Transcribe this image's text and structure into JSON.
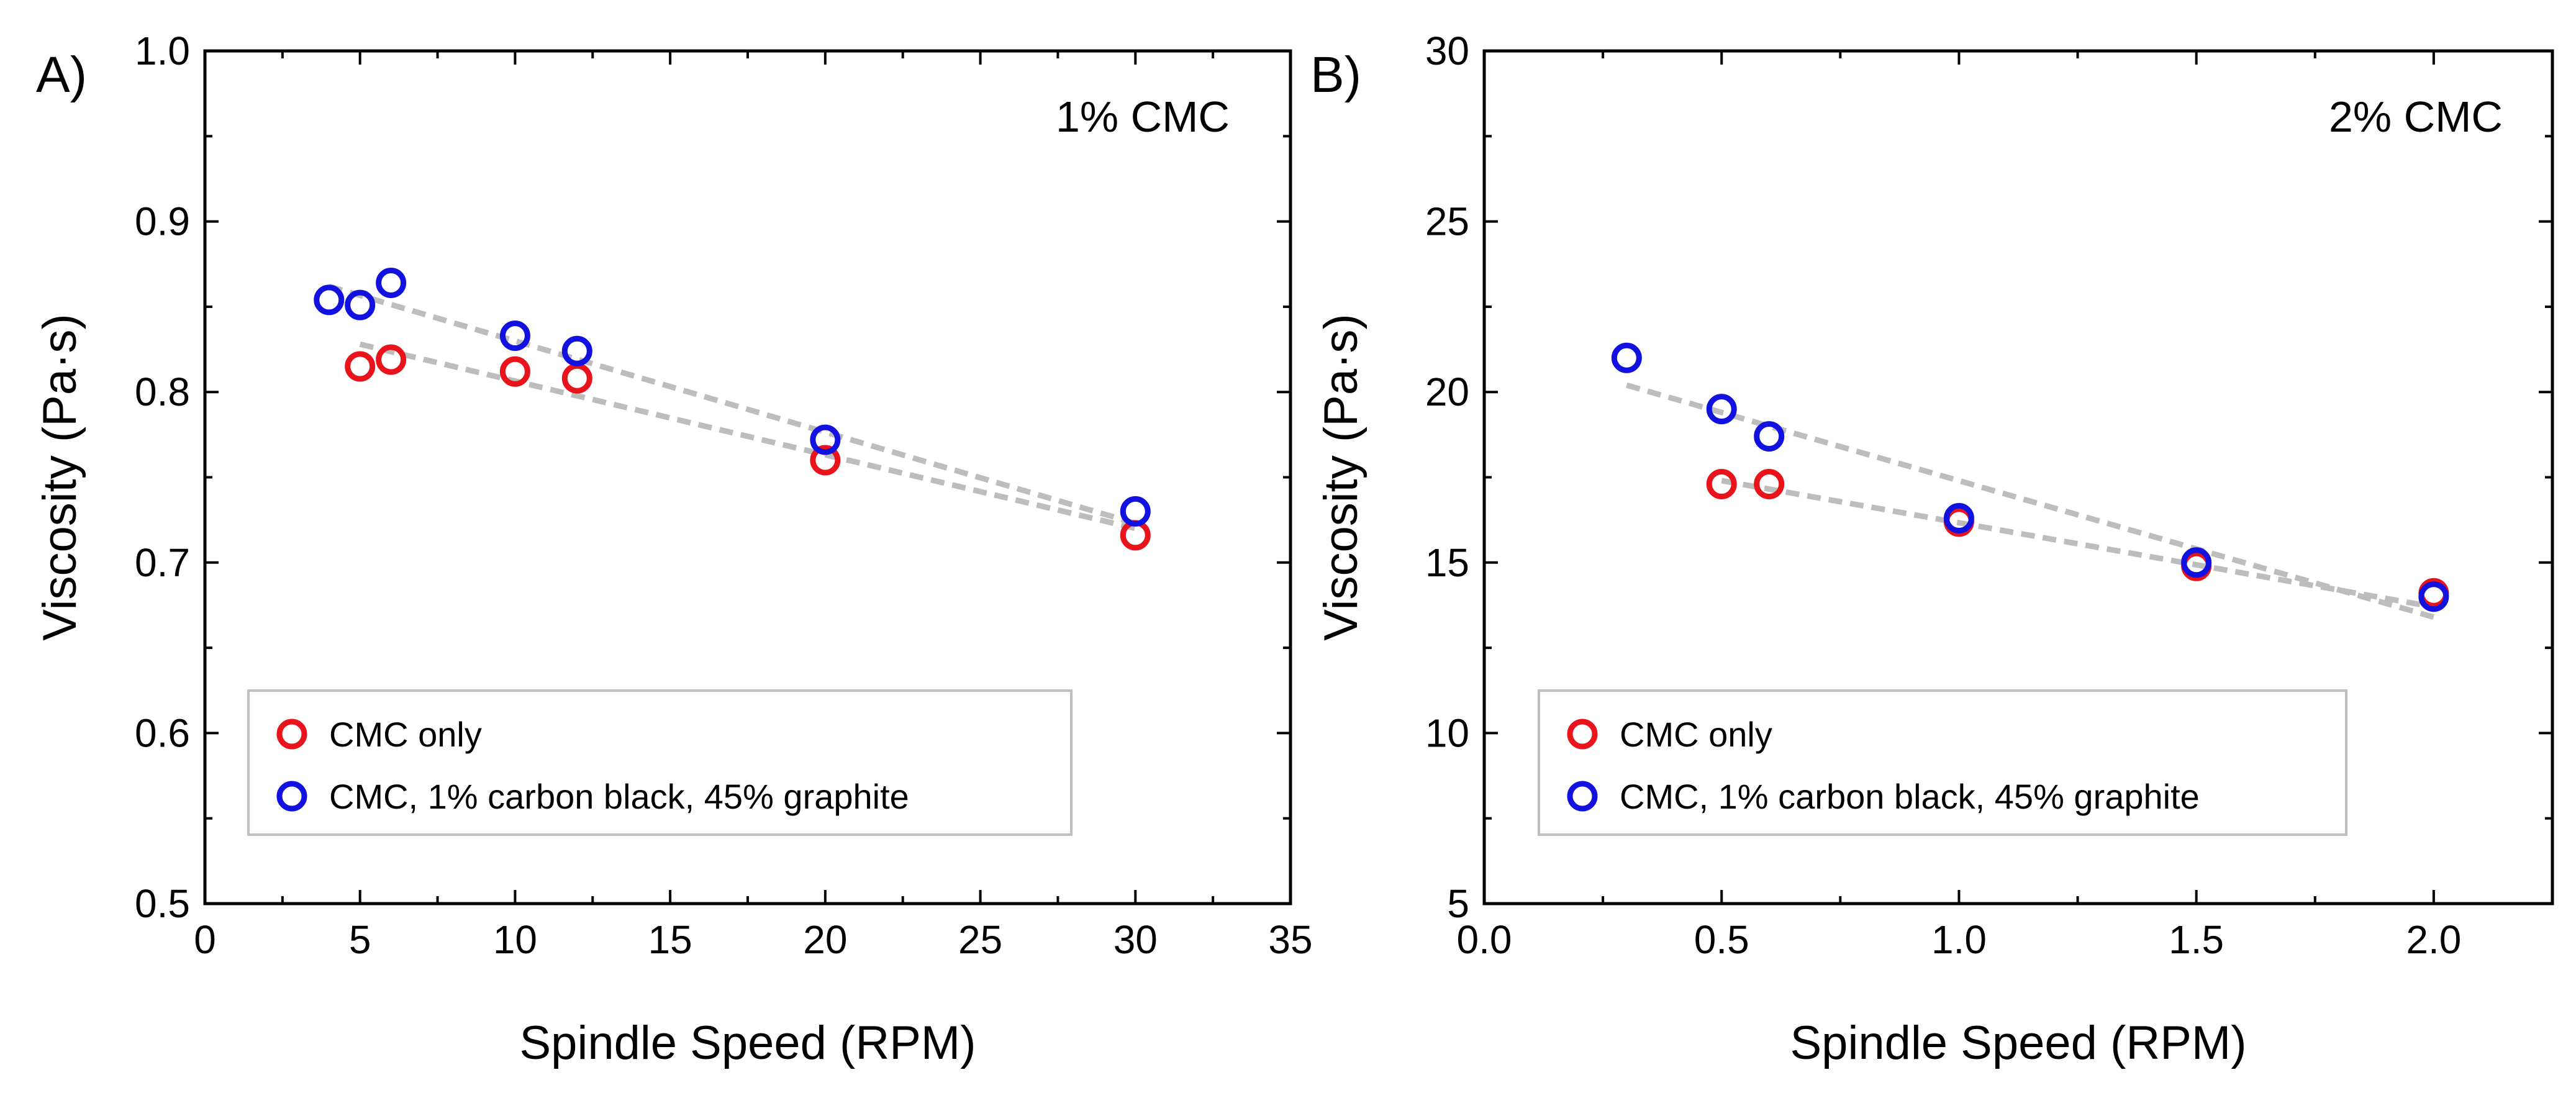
{
  "chart_data": [
    {
      "panel_label": "A)",
      "type": "scatter",
      "annotation": "1% CMC",
      "xlabel": "Spindle Speed (RPM)",
      "ylabel": "Viscosity (Pa·s)",
      "xlim": [
        0,
        35
      ],
      "ylim": [
        0.5,
        1.0
      ],
      "xticks": [
        0,
        5,
        10,
        15,
        20,
        25,
        30,
        35
      ],
      "xtick_labels": [
        "0",
        "5",
        "10",
        "15",
        "20",
        "25",
        "30",
        "35"
      ],
      "yticks": [
        0.5,
        0.6,
        0.7,
        0.8,
        0.9,
        1.0
      ],
      "ytick_labels": [
        "0.5",
        "0.6",
        "0.7",
        "0.8",
        "0.9",
        "1.0"
      ],
      "legend_position": "bottom-left",
      "series": [
        {
          "name": "CMC only",
          "color": "#e8131b",
          "x": [
            5,
            6,
            10,
            12,
            20,
            30
          ],
          "y": [
            0.815,
            0.819,
            0.812,
            0.808,
            0.76,
            0.716
          ],
          "trendline": {
            "x": [
              5,
              30
            ],
            "y": [
              0.828,
              0.72
            ]
          }
        },
        {
          "name": "CMC, 1% carbon black, 45% graphite",
          "color": "#1111e0",
          "x": [
            4,
            5,
            6,
            10,
            12,
            20,
            30
          ],
          "y": [
            0.854,
            0.851,
            0.864,
            0.833,
            0.824,
            0.772,
            0.73
          ],
          "trendline": {
            "x": [
              4,
              30
            ],
            "y": [
              0.862,
              0.723
            ]
          }
        }
      ]
    },
    {
      "panel_label": "B)",
      "type": "scatter",
      "annotation": "2% CMC",
      "xlabel": "Spindle Speed (RPM)",
      "ylabel": "Viscosity (Pa·s)",
      "xlim": [
        0.0,
        2.25
      ],
      "ylim": [
        5,
        30
      ],
      "xticks": [
        0.0,
        0.5,
        1.0,
        1.5,
        2.0
      ],
      "xtick_labels": [
        "0.0",
        "0.5",
        "1.0",
        "1.5",
        "2.0"
      ],
      "yticks": [
        5,
        10,
        15,
        20,
        25,
        30
      ],
      "ytick_labels": [
        "5",
        "10",
        "15",
        "20",
        "25",
        "30"
      ],
      "legend_position": "bottom-left",
      "series": [
        {
          "name": "CMC only",
          "color": "#e8131b",
          "x": [
            0.5,
            0.6,
            1.0,
            1.5,
            2.0
          ],
          "y": [
            17.3,
            17.3,
            16.2,
            14.9,
            14.1
          ],
          "trendline": {
            "x": [
              0.5,
              2.0
            ],
            "y": [
              17.4,
              13.7
            ]
          }
        },
        {
          "name": "CMC, 1% carbon black, 45% graphite",
          "color": "#1111e0",
          "x": [
            0.3,
            0.5,
            0.6,
            1.0,
            1.5,
            2.0
          ],
          "y": [
            21.0,
            19.5,
            18.7,
            16.3,
            15.0,
            14.0
          ],
          "trendline": {
            "x": [
              0.3,
              2.0
            ],
            "y": [
              20.2,
              13.4
            ]
          }
        }
      ]
    }
  ]
}
